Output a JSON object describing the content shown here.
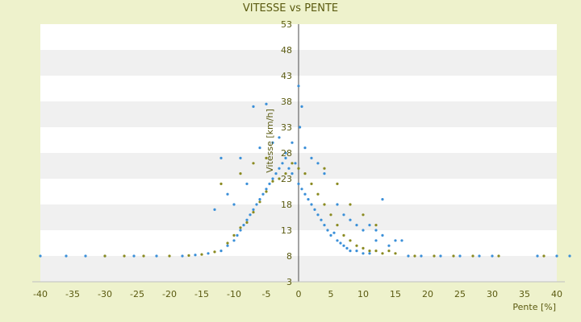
{
  "chart_data": {
    "type": "scatter",
    "title": "VITESSE vs PENTE",
    "xlabel": "Pente [%]",
    "ylabel": "Vitesse [km/h]",
    "xlim": [
      -40,
      40
    ],
    "ylim": [
      3,
      53
    ],
    "x_ticks": [
      -40,
      -35,
      -30,
      -25,
      -20,
      -15,
      -10,
      -5,
      0,
      5,
      10,
      15,
      20,
      25,
      30,
      35,
      40
    ],
    "y_ticks": [
      3,
      8,
      13,
      18,
      23,
      28,
      33,
      38,
      43,
      48,
      53
    ],
    "grid": "horizontal bands",
    "series": [
      {
        "color": "#3a8fd8",
        "points": [
          [
            -40,
            8
          ],
          [
            -36,
            8
          ],
          [
            -33,
            8
          ],
          [
            -30,
            8
          ],
          [
            -25.5,
            8
          ],
          [
            -22,
            8
          ],
          [
            -18,
            8
          ],
          [
            -16,
            8.2
          ],
          [
            -14,
            8.5
          ],
          [
            -12,
            9
          ],
          [
            -11,
            10
          ],
          [
            -10,
            11
          ],
          [
            -9.5,
            12
          ],
          [
            -9,
            13
          ],
          [
            -8.5,
            14
          ],
          [
            -8,
            15
          ],
          [
            -7.5,
            16
          ],
          [
            -7,
            17
          ],
          [
            -6.5,
            18
          ],
          [
            -6,
            19
          ],
          [
            -5.5,
            20
          ],
          [
            -5,
            21
          ],
          [
            -4.5,
            22
          ],
          [
            -4,
            23
          ],
          [
            -3.5,
            24
          ],
          [
            -3,
            25
          ],
          [
            -2.5,
            26
          ],
          [
            -2,
            27
          ],
          [
            -1.5,
            25
          ],
          [
            -1,
            24
          ],
          [
            -0.5,
            26
          ],
          [
            0,
            22
          ],
          [
            0.5,
            21
          ],
          [
            1,
            20
          ],
          [
            1.5,
            19
          ],
          [
            2,
            18
          ],
          [
            2.5,
            17
          ],
          [
            3,
            16
          ],
          [
            3.5,
            15
          ],
          [
            4,
            14
          ],
          [
            4.5,
            13
          ],
          [
            5,
            12
          ],
          [
            5.5,
            12.5
          ],
          [
            6,
            11
          ],
          [
            6.5,
            10.5
          ],
          [
            7,
            10
          ],
          [
            7.5,
            9.5
          ],
          [
            8,
            9
          ],
          [
            9,
            9
          ],
          [
            10,
            8.5
          ],
          [
            11,
            8.5
          ],
          [
            12,
            11
          ],
          [
            13,
            12
          ],
          [
            14,
            10
          ],
          [
            15,
            11
          ],
          [
            16,
            11
          ],
          [
            17,
            8
          ],
          [
            19,
            8
          ],
          [
            22,
            8
          ],
          [
            25,
            8
          ],
          [
            28,
            8
          ],
          [
            30,
            8
          ],
          [
            37,
            8
          ],
          [
            40,
            8
          ],
          [
            42,
            8
          ],
          [
            -7,
            37
          ],
          [
            -5,
            37.5
          ],
          [
            0,
            41
          ],
          [
            0.5,
            37
          ],
          [
            -3,
            31
          ],
          [
            -4,
            30
          ],
          [
            -6,
            29
          ],
          [
            -9,
            27
          ],
          [
            -12,
            27
          ],
          [
            -2,
            28
          ],
          [
            1,
            29
          ],
          [
            2,
            27
          ],
          [
            3,
            26
          ],
          [
            4,
            24
          ],
          [
            -8,
            22
          ],
          [
            -11,
            20
          ],
          [
            -10,
            18
          ],
          [
            -13,
            17
          ],
          [
            6,
            18
          ],
          [
            7,
            16
          ],
          [
            8,
            15
          ],
          [
            9,
            14
          ],
          [
            10,
            13
          ],
          [
            11,
            14
          ],
          [
            12,
            13
          ],
          [
            13,
            19
          ],
          [
            -1,
            30
          ],
          [
            0.2,
            33
          ]
        ]
      },
      {
        "color": "#8a8a20",
        "points": [
          [
            -30,
            8
          ],
          [
            -27,
            8
          ],
          [
            -24,
            8
          ],
          [
            -20,
            8
          ],
          [
            -17,
            8.1
          ],
          [
            -15,
            8.3
          ],
          [
            -13,
            8.8
          ],
          [
            -11,
            10.5
          ],
          [
            -10,
            12
          ],
          [
            -9,
            13.5
          ],
          [
            -8,
            14.5
          ],
          [
            -7,
            16.5
          ],
          [
            -6,
            18.5
          ],
          [
            -5,
            20.5
          ],
          [
            -4,
            22.5
          ],
          [
            -3,
            23
          ],
          [
            -2,
            24
          ],
          [
            -1,
            26
          ],
          [
            0,
            25
          ],
          [
            1,
            24
          ],
          [
            2,
            22
          ],
          [
            3,
            20
          ],
          [
            4,
            18
          ],
          [
            5,
            16
          ],
          [
            6,
            14
          ],
          [
            7,
            12
          ],
          [
            8,
            11
          ],
          [
            9,
            10
          ],
          [
            10,
            9.5
          ],
          [
            11,
            9
          ],
          [
            12,
            9
          ],
          [
            13,
            8.5
          ],
          [
            14,
            9
          ],
          [
            15,
            8.5
          ],
          [
            18,
            8
          ],
          [
            21,
            8
          ],
          [
            24,
            8
          ],
          [
            27,
            8
          ],
          [
            31,
            8
          ],
          [
            38,
            8
          ],
          [
            -12,
            22
          ],
          [
            -9,
            24
          ],
          [
            -7,
            26
          ],
          [
            -5,
            27
          ],
          [
            4,
            25
          ],
          [
            6,
            22
          ],
          [
            8,
            18
          ],
          [
            10,
            16
          ],
          [
            12,
            14
          ]
        ]
      }
    ]
  }
}
